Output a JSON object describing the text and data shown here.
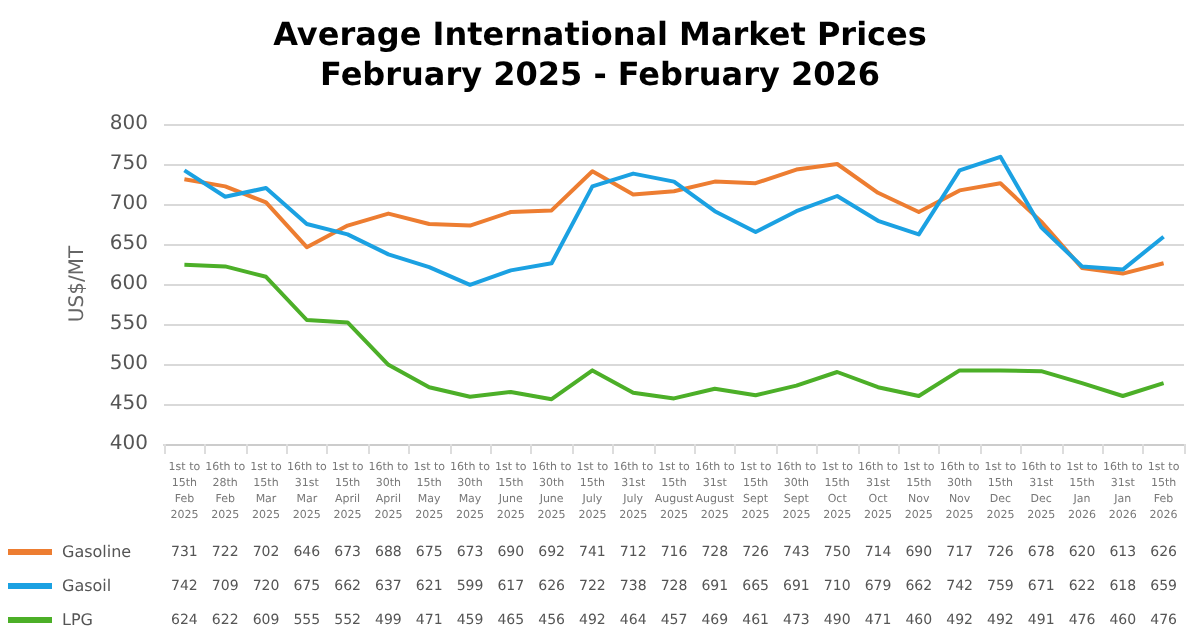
{
  "chart_data": {
    "type": "line",
    "title": "Average International Market Prices",
    "subtitle": "February 2025 - February 2026",
    "ylabel": "US$/MT",
    "categories": [
      "1st to\n15th\nFeb\n2025",
      "16th to\n28th\nFeb\n2025",
      "1st to\n15th\nMar\n2025",
      "16th to\n31st\nMar\n2025",
      "1st to\n15th\nApril\n2025",
      "16th to\n30th\nApril\n2025",
      "1st to\n15th\nMay\n2025",
      "16th to\n30th\nMay\n2025",
      "1st to\n15th\nJune\n2025",
      "16th to\n30th\nJune\n2025",
      "1st to\n15th\nJuly\n2025",
      "16th to\n31st\nJuly\n2025",
      "1st to\n15th\nAugust\n2025",
      "16th to\n31st\nAugust\n2025",
      "1st to\n15th\nSept\n2025",
      "16th to\n30th\nSept\n2025",
      "1st to\n15th\nOct\n2025",
      "16th to\n31st\nOct\n2025",
      "1st to\n15th\nNov\n2025",
      "16th to\n30th\nNov\n2025",
      "1st to\n15th\nDec\n2025",
      "16th to\n31st\nDec\n2025",
      "1st to\n15th\nJan\n2026",
      "16th to\n31st\nJan\n2026",
      "1st to\n15th\nFeb\n2026"
    ],
    "series": [
      {
        "name": "Gasoline",
        "color": "#ed7d31",
        "values": [
          731,
          722,
          702,
          646,
          673,
          688,
          675,
          673,
          690,
          692,
          741,
          712,
          716,
          728,
          726,
          743,
          750,
          714,
          690,
          717,
          726,
          678,
          620,
          613,
          626
        ]
      },
      {
        "name": "Gasoil",
        "color": "#1ba1e2",
        "values": [
          742,
          709,
          720,
          675,
          662,
          637,
          621,
          599,
          617,
          626,
          722,
          738,
          728,
          691,
          665,
          691,
          710,
          679,
          662,
          742,
          759,
          671,
          622,
          618,
          659
        ]
      },
      {
        "name": "LPG",
        "color": "#4caf28",
        "values": [
          624,
          622,
          609,
          555,
          552,
          499,
          471,
          459,
          465,
          456,
          492,
          464,
          457,
          469,
          461,
          473,
          490,
          471,
          460,
          492,
          492,
          491,
          476,
          460,
          476
        ]
      }
    ],
    "ylim": [
      400,
      800
    ],
    "yticks": [
      400,
      450,
      500,
      550,
      600,
      650,
      700,
      750,
      800
    ],
    "grid": true,
    "legend": "bottom",
    "data_labels": true
  }
}
